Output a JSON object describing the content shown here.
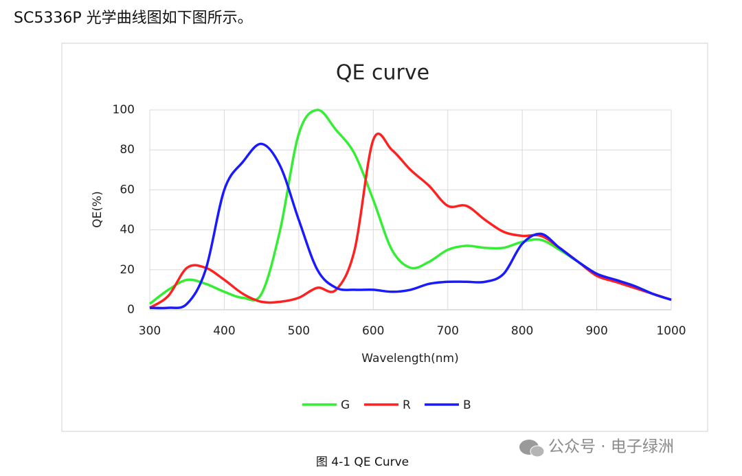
{
  "header": "SC5336P 光学曲线图如下图所示。",
  "caption": "图 4-1 QE Curve",
  "watermark": "公众号 · 电子绿洲",
  "chart_data": {
    "type": "line",
    "title": "QE curve",
    "x_label": "Wavelength(nm)",
    "y_label": "QE(%)",
    "x": [
      300,
      325,
      350,
      375,
      400,
      425,
      450,
      475,
      500,
      525,
      550,
      575,
      600,
      625,
      650,
      675,
      700,
      725,
      750,
      775,
      800,
      825,
      850,
      875,
      900,
      925,
      950,
      975,
      1000
    ],
    "series": [
      {
        "name": "G",
        "color": "#33ee33",
        "values": [
          3,
          10,
          15,
          13,
          9,
          6,
          8,
          40,
          88,
          100,
          90,
          78,
          55,
          30,
          21,
          24,
          30,
          32,
          31,
          31,
          34,
          35,
          30,
          24,
          18,
          15,
          12,
          8,
          5
        ]
      },
      {
        "name": "R",
        "color": "#ff2020",
        "values": [
          1,
          7,
          21,
          21,
          15,
          8,
          4,
          4,
          6,
          11,
          10,
          30,
          85,
          80,
          70,
          62,
          52,
          52,
          45,
          39,
          37,
          37,
          31,
          24,
          17,
          14,
          11,
          8,
          5
        ]
      },
      {
        "name": "B",
        "color": "#1a1aff",
        "values": [
          1,
          1,
          3,
          20,
          60,
          74,
          83,
          72,
          45,
          20,
          11,
          10,
          10,
          9,
          10,
          13,
          14,
          14,
          14,
          18,
          33,
          38,
          31,
          24,
          18,
          15,
          12,
          8,
          5
        ]
      }
    ],
    "xlim": [
      300,
      1000
    ],
    "xticks": [
      300,
      400,
      500,
      600,
      700,
      800,
      900,
      1000
    ],
    "ylim": [
      0,
      100
    ],
    "yticks": [
      0,
      20,
      40,
      60,
      80,
      100
    ],
    "grid": true,
    "legend": "bottom"
  }
}
